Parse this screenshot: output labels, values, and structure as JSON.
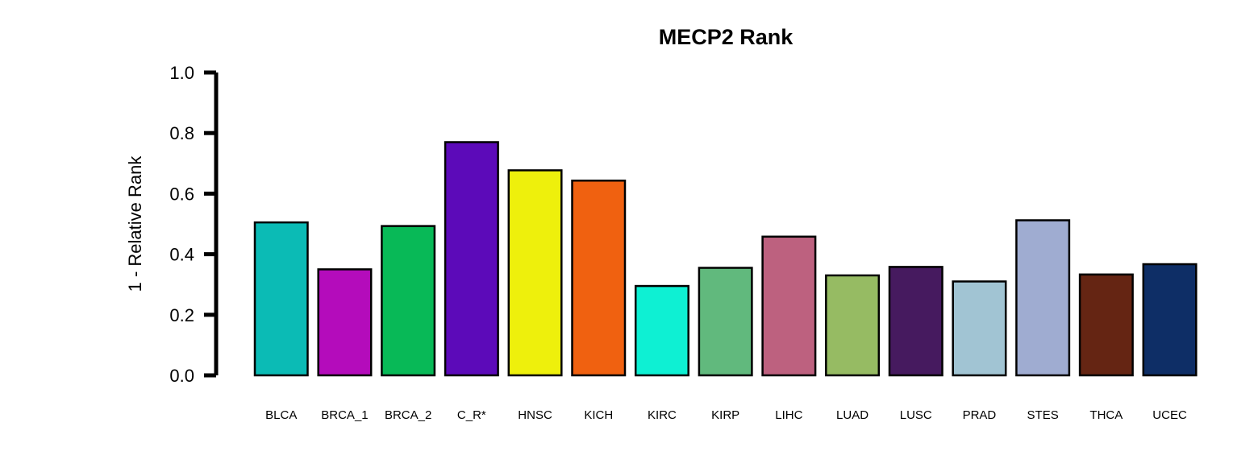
{
  "chart_data": {
    "type": "bar",
    "title": "MECP2 Rank",
    "xlabel": "",
    "ylabel": "1 - Relative Rank",
    "ylim": [
      0,
      1.0
    ],
    "yticks": [
      "0.0",
      "0.2",
      "0.4",
      "0.6",
      "0.8",
      "1.0"
    ],
    "grid": false,
    "legend": "none",
    "categories": [
      "BLCA",
      "BRCA_1",
      "BRCA_2",
      "C_R*",
      "HNSC",
      "KICH",
      "KIRC",
      "KIRP",
      "LIHC",
      "LUAD",
      "LUSC",
      "PRAD",
      "STES",
      "THCA",
      "UCEC"
    ],
    "values": [
      0.505,
      0.35,
      0.493,
      0.77,
      0.677,
      0.643,
      0.295,
      0.355,
      0.458,
      0.33,
      0.358,
      0.31,
      0.512,
      0.333,
      0.367
    ],
    "colors": [
      "#0BBBB5",
      "#B40CBB",
      "#08B957",
      "#5C0AB9",
      "#EEF00C",
      "#F06110",
      "#0EF0D3",
      "#61B97D",
      "#BD617F",
      "#96BB63",
      "#461A5F",
      "#A1C4D3",
      "#9FACD1",
      "#652513",
      "#0E2E66"
    ]
  }
}
